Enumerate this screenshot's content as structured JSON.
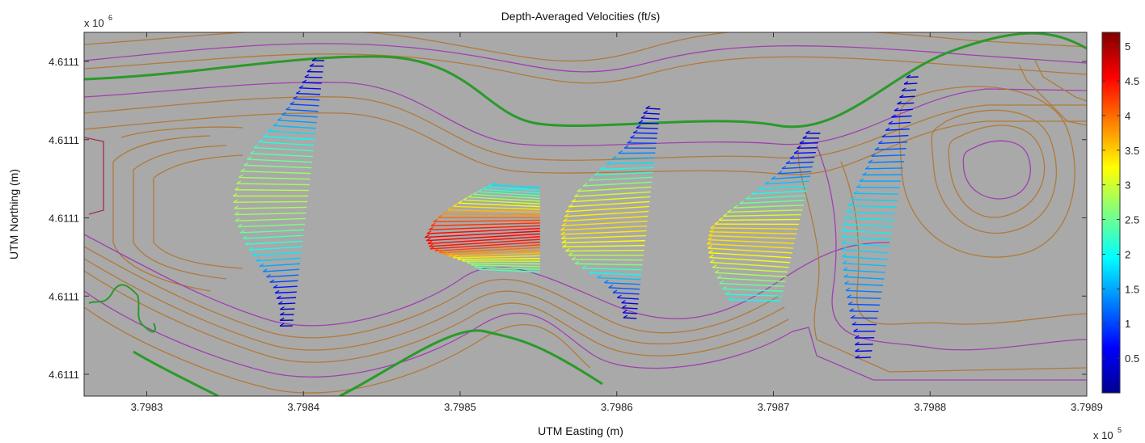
{
  "chart_data": {
    "type": "quiver",
    "title": "Depth-Averaged Velocities (ft/s)",
    "xlabel": "UTM Easting (m)",
    "ylabel": "UTM Northing (m)",
    "x_exponent_label": "x 10",
    "x_exponent": "5",
    "y_exponent_label": "x 10",
    "y_exponent": "6",
    "x_ticks": [
      "3.7983",
      "3.7984",
      "3.7985",
      "3.7986",
      "3.7987",
      "3.7988",
      "3.7989"
    ],
    "y_ticks": [
      "4.6111",
      "4.6111",
      "4.6111",
      "4.6111",
      "4.6111"
    ],
    "xlim": [
      379826,
      379890
    ],
    "colorbar": {
      "ticks": [
        "0.5",
        "1",
        "1.5",
        "2",
        "2.5",
        "3",
        "3.5",
        "4",
        "4.5",
        "5"
      ],
      "range": [
        0,
        5.2
      ],
      "colormap": "jet"
    },
    "background_color": "#a9a9a9",
    "contour_colors": {
      "main": "#b07a3a",
      "secondary": "#a040b0",
      "channel": "#2a9a2a",
      "boundary": "#a03050"
    },
    "transects": [
      {
        "x": 379840.3,
        "speeds": [
          0.3,
          0.6,
          1.0,
          1.6,
          2.3,
          2.7,
          2.9,
          2.7,
          2.2,
          1.5,
          0.8,
          0.4,
          0.3
        ]
      },
      {
        "x": 379855.1,
        "speeds": [
          1.8,
          2.6,
          3.4,
          4.2,
          4.6,
          4.4,
          3.6,
          2.8,
          2.2
        ]
      },
      {
        "x": 379862.0,
        "speeds": [
          0.4,
          0.7,
          1.1,
          2.0,
          2.9,
          3.3,
          3.4,
          3.2,
          2.6,
          1.3,
          0.5,
          0.3
        ]
      },
      {
        "x": 379871.7,
        "speeds": [
          0.4,
          0.7,
          1.2,
          2.1,
          2.9,
          3.4,
          3.4,
          3.1,
          2.5,
          1.8
        ]
      },
      {
        "x": 379877.7,
        "speeds": [
          0.3,
          0.5,
          0.8,
          1.2,
          1.5,
          1.8,
          1.9,
          1.7,
          1.4,
          1.0,
          0.6,
          0.4
        ]
      }
    ]
  }
}
